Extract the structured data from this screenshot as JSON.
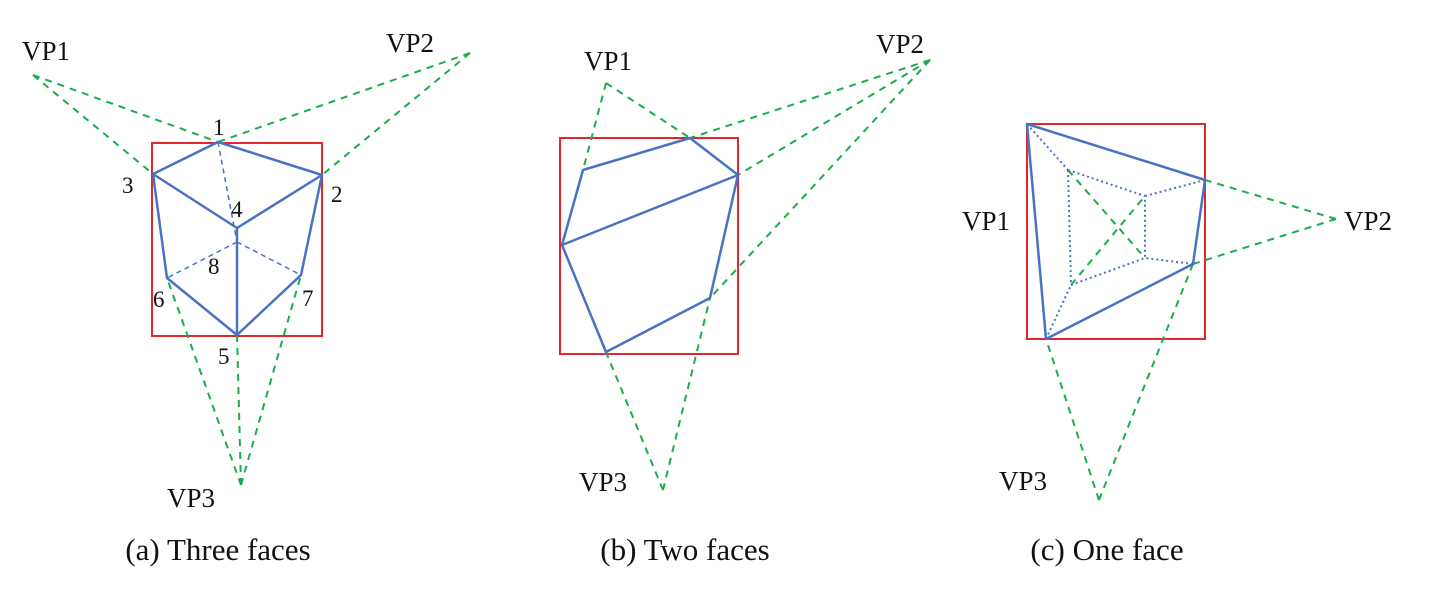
{
  "colors": {
    "box": "#e3262b",
    "edge": "#4a72c4",
    "vanishing_line": "#19ad4b",
    "text": "#111111"
  },
  "panels": [
    {
      "caption": "(a) Three faces",
      "vp_labels": [
        "VP1",
        "VP2",
        "VP3"
      ],
      "vertex_labels": [
        "1",
        "2",
        "3",
        "4",
        "5",
        "6",
        "7",
        "8"
      ]
    },
    {
      "caption": "(b) Two faces",
      "vp_labels": [
        "VP1",
        "VP2",
        "VP3"
      ]
    },
    {
      "caption": "(c) One face",
      "vp_labels": [
        "VP1",
        "VP2",
        "VP3"
      ]
    }
  ]
}
